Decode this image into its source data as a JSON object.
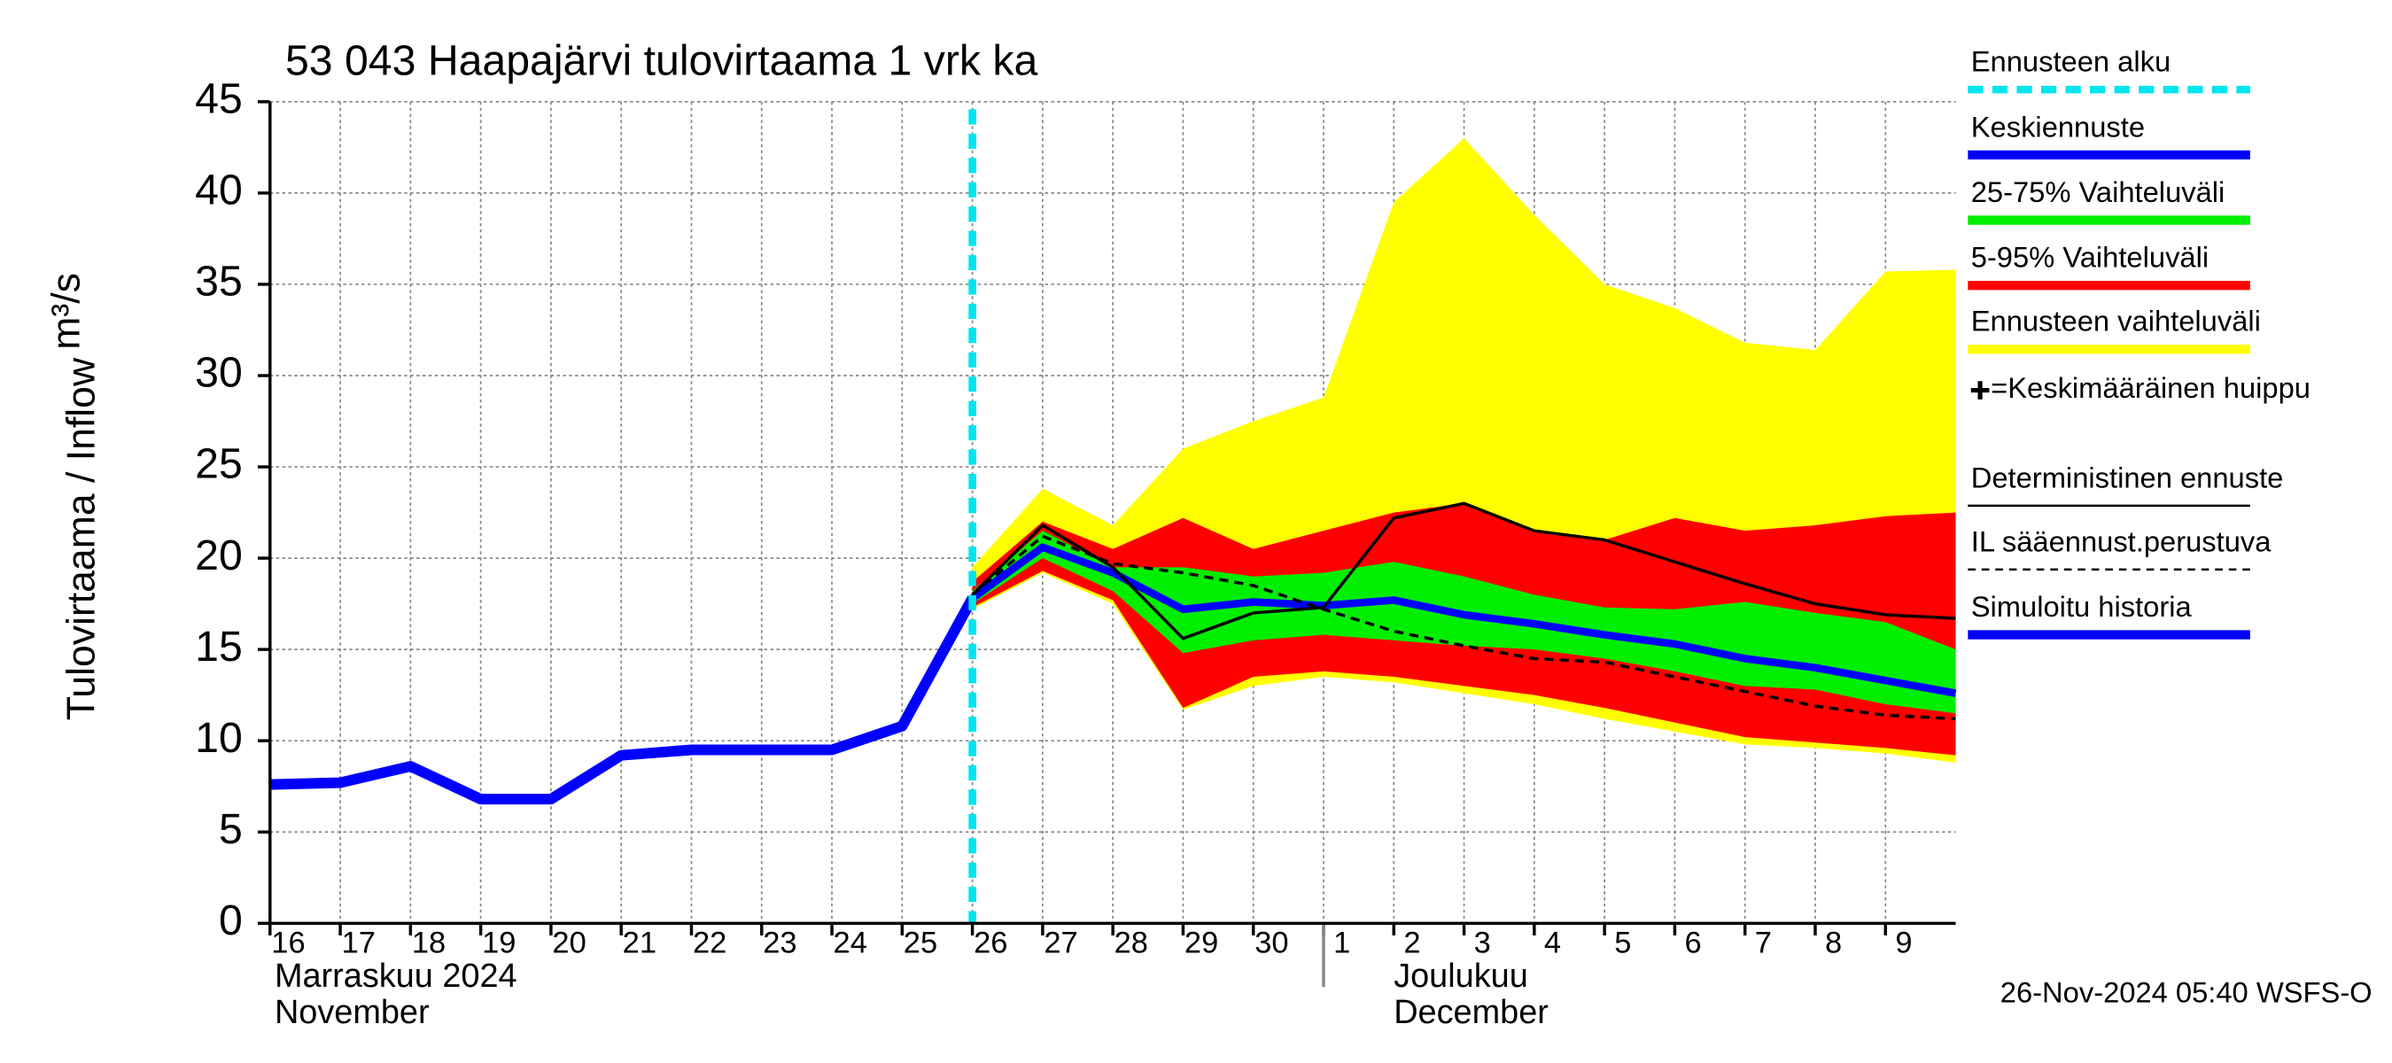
{
  "chart_data": {
    "type": "line",
    "title": "53 043 Haapajärvi tulovirtaama 1 vrk ka",
    "ylabel": "Tulovirtaama / Inflow",
    "yunit": "m³/s",
    "x": [
      0,
      1,
      2,
      3,
      4,
      5,
      6,
      7,
      8,
      9,
      10,
      11,
      12,
      13,
      14,
      15,
      16,
      17,
      18,
      19,
      20,
      21,
      22,
      23,
      24
    ],
    "xlim": [
      0,
      24
    ],
    "xticks": [
      {
        "value": 0,
        "label": "16"
      },
      {
        "value": 1,
        "label": "17"
      },
      {
        "value": 2,
        "label": "18"
      },
      {
        "value": 3,
        "label": "19"
      },
      {
        "value": 4,
        "label": "20"
      },
      {
        "value": 5,
        "label": "21"
      },
      {
        "value": 6,
        "label": "22"
      },
      {
        "value": 7,
        "label": "23"
      },
      {
        "value": 8,
        "label": "24"
      },
      {
        "value": 9,
        "label": "25"
      },
      {
        "value": 10,
        "label": "26"
      },
      {
        "value": 11,
        "label": "27"
      },
      {
        "value": 12,
        "label": "28"
      },
      {
        "value": 13,
        "label": "29"
      },
      {
        "value": 14,
        "label": "30"
      },
      {
        "value": 15,
        "label": "1"
      },
      {
        "value": 16,
        "label": "2"
      },
      {
        "value": 17,
        "label": "3"
      },
      {
        "value": 18,
        "label": "4"
      },
      {
        "value": 19,
        "label": "5"
      },
      {
        "value": 20,
        "label": "6"
      },
      {
        "value": 21,
        "label": "7"
      },
      {
        "value": 22,
        "label": "8"
      },
      {
        "value": 23,
        "label": "9"
      }
    ],
    "month_labels": [
      {
        "value": 0,
        "lines": [
          "Marraskuu 2024",
          "November"
        ]
      },
      {
        "value": 15,
        "lines": [
          "Joulukuu",
          "December"
        ]
      }
    ],
    "ylim": [
      0,
      45
    ],
    "yticks": [
      0,
      5,
      10,
      15,
      20,
      25,
      30,
      35,
      40,
      45
    ],
    "grid": true,
    "forecast_start": {
      "name": "Ennusteen alku",
      "color": "#00e5ee",
      "x": 10
    },
    "series": [
      {
        "name": "Keskiennuste",
        "kind": "line",
        "color": "#0000ff",
        "width": 5,
        "values": [
          null,
          null,
          null,
          null,
          null,
          null,
          null,
          null,
          null,
          null,
          17.8,
          20.6,
          19.2,
          17.2,
          17.6,
          17.4,
          17.7,
          16.9,
          16.4,
          15.8,
          15.3,
          14.5,
          14.0,
          13.3,
          12.6
        ]
      },
      {
        "name": "25-75% Vaihteluväli",
        "kind": "band",
        "color": "#00ee00",
        "lower": [
          null,
          null,
          null,
          null,
          null,
          null,
          null,
          null,
          null,
          null,
          17.5,
          20.0,
          18.2,
          14.8,
          15.5,
          15.8,
          15.5,
          15.2,
          15.0,
          14.5,
          13.8,
          13.0,
          12.8,
          12.0,
          11.5
        ],
        "upper": [
          null,
          null,
          null,
          null,
          null,
          null,
          null,
          null,
          null,
          null,
          18.2,
          21.5,
          19.5,
          19.5,
          19.0,
          19.2,
          19.8,
          19.0,
          18.0,
          17.3,
          17.2,
          17.6,
          17.0,
          16.5,
          15.0
        ]
      },
      {
        "name": "5-95% Vaihteluväli",
        "kind": "band",
        "color": "#ff0000",
        "lower": [
          null,
          null,
          null,
          null,
          null,
          null,
          null,
          null,
          null,
          null,
          17.3,
          19.3,
          17.7,
          11.8,
          13.5,
          13.8,
          13.5,
          13.0,
          12.5,
          11.8,
          11.0,
          10.2,
          9.9,
          9.6,
          9.2
        ],
        "upper": [
          null,
          null,
          null,
          null,
          null,
          null,
          null,
          null,
          null,
          null,
          18.7,
          22.0,
          20.5,
          22.2,
          20.5,
          21.5,
          22.5,
          23.0,
          21.5,
          21.0,
          22.2,
          21.5,
          21.8,
          22.3,
          22.5
        ]
      },
      {
        "name": "Ennusteen vaihteluväli",
        "kind": "band",
        "color": "#ffff00",
        "lower": [
          null,
          null,
          null,
          null,
          null,
          null,
          null,
          null,
          null,
          null,
          17.2,
          19.2,
          17.5,
          11.7,
          13.0,
          13.5,
          13.2,
          12.6,
          12.0,
          11.2,
          10.5,
          9.8,
          9.6,
          9.3,
          8.8
        ],
        "upper": [
          null,
          null,
          null,
          null,
          null,
          null,
          null,
          null,
          null,
          null,
          19.5,
          23.8,
          21.8,
          26.0,
          27.5,
          28.8,
          39.5,
          43.0,
          38.8,
          35.0,
          33.7,
          31.8,
          31.4,
          35.7,
          35.8
        ]
      },
      {
        "name": "Deterministinen ennuste",
        "kind": "line",
        "color": "#000000",
        "width": 2,
        "values": [
          null,
          null,
          null,
          null,
          null,
          null,
          null,
          null,
          null,
          null,
          18.0,
          21.8,
          19.5,
          15.6,
          17.0,
          17.3,
          22.2,
          23.0,
          21.5,
          21.0,
          19.8,
          18.6,
          17.5,
          16.9,
          16.7
        ]
      },
      {
        "name": "IL sääennust.perustuva",
        "kind": "line",
        "color": "#000000",
        "width": 2,
        "dash": true,
        "values": [
          null,
          null,
          null,
          null,
          null,
          null,
          null,
          null,
          null,
          null,
          18.0,
          21.2,
          19.7,
          19.2,
          18.5,
          17.2,
          16.0,
          15.2,
          14.5,
          14.3,
          13.5,
          12.7,
          11.9,
          11.4,
          11.2
        ]
      },
      {
        "name": "Simuloitu historia",
        "kind": "line",
        "color": "#0000ff",
        "width": 7,
        "values": [
          7.6,
          7.7,
          8.6,
          6.8,
          6.8,
          9.2,
          9.5,
          9.5,
          9.5,
          10.8,
          17.8,
          null,
          null,
          null,
          null,
          null,
          null,
          null,
          null,
          null,
          null,
          null,
          null,
          null,
          null
        ]
      }
    ],
    "peak_note": "=Keskimääräinen huippu",
    "footer": "26-Nov-2024 05:40 WSFS-O"
  }
}
